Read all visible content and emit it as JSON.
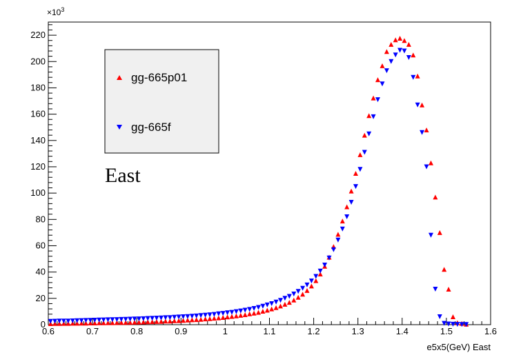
{
  "chart_data": {
    "type": "scatter",
    "xlabel": "e5x5(GeV) East",
    "ylabel": "",
    "y_multiplier_base": "×10",
    "y_multiplier_exp": "3",
    "xlim": [
      0.6,
      1.6
    ],
    "ylim": [
      0,
      230
    ],
    "x_ticks": [
      0.6,
      0.7,
      0.8,
      0.9,
      1.0,
      1.1,
      1.2,
      1.3,
      1.4,
      1.5,
      1.6
    ],
    "x_tick_labels": [
      "0.6",
      "0.7",
      "0.8",
      "0.9",
      "1",
      "1.1",
      "1.2",
      "1.3",
      "1.4",
      "1.5",
      "1.6"
    ],
    "y_ticks": [
      0,
      20,
      40,
      60,
      80,
      100,
      120,
      140,
      160,
      180,
      200,
      220
    ],
    "y_tick_labels": [
      "0",
      "20",
      "40",
      "60",
      "80",
      "100",
      "120",
      "140",
      "160",
      "180",
      "200",
      "220"
    ],
    "grid": false,
    "legend_position": "top-left",
    "annotation": "East",
    "series": [
      {
        "name": "gg-665p01",
        "color": "#ff0000",
        "marker": "triangle-up",
        "x": [
          0.605,
          0.615,
          0.625,
          0.635,
          0.645,
          0.655,
          0.665,
          0.675,
          0.685,
          0.695,
          0.705,
          0.715,
          0.725,
          0.735,
          0.745,
          0.755,
          0.765,
          0.775,
          0.785,
          0.795,
          0.805,
          0.815,
          0.825,
          0.835,
          0.845,
          0.855,
          0.865,
          0.875,
          0.885,
          0.895,
          0.905,
          0.915,
          0.925,
          0.935,
          0.945,
          0.955,
          0.965,
          0.975,
          0.985,
          0.995,
          1.005,
          1.015,
          1.025,
          1.035,
          1.045,
          1.055,
          1.065,
          1.075,
          1.085,
          1.095,
          1.105,
          1.115,
          1.125,
          1.135,
          1.145,
          1.155,
          1.165,
          1.175,
          1.185,
          1.195,
          1.205,
          1.215,
          1.225,
          1.235,
          1.245,
          1.255,
          1.265,
          1.275,
          1.285,
          1.295,
          1.305,
          1.315,
          1.325,
          1.335,
          1.345,
          1.355,
          1.365,
          1.375,
          1.385,
          1.395,
          1.405,
          1.415,
          1.425,
          1.435,
          1.445,
          1.455,
          1.465,
          1.475,
          1.485,
          1.495,
          1.505,
          1.515,
          1.525,
          1.535,
          1.545
        ],
        "values": [
          0.8,
          0.9,
          0.9,
          1.0,
          1.0,
          1.1,
          1.1,
          1.2,
          1.2,
          1.3,
          1.3,
          1.4,
          1.4,
          1.5,
          1.5,
          1.6,
          1.7,
          1.7,
          1.8,
          1.9,
          2.0,
          2.1,
          2.2,
          2.3,
          2.4,
          2.5,
          2.7,
          2.8,
          3.0,
          3.1,
          3.3,
          3.5,
          3.7,
          3.9,
          4.1,
          4.4,
          4.6,
          4.9,
          5.2,
          5.5,
          5.9,
          6.3,
          6.7,
          7.1,
          7.6,
          8.2,
          8.8,
          9.4,
          10.2,
          11.0,
          12.0,
          13.0,
          14.2,
          15.5,
          17.0,
          18.7,
          20.8,
          23.2,
          26.0,
          29.4,
          33.5,
          38.5,
          44.4,
          51.3,
          59.4,
          68.7,
          78.8,
          89.6,
          101.6,
          115.0,
          129.2,
          144.0,
          158.9,
          172.3,
          186.2,
          196.8,
          207.6,
          213.0,
          216.5,
          217.7,
          216.0,
          213.0,
          205.0,
          189.0,
          167.0,
          148.0,
          123.0,
          97.0,
          70.0,
          42.0,
          27.0,
          6.0,
          1.5,
          1.0,
          0.4
        ]
      },
      {
        "name": "gg-665f",
        "color": "#0000ff",
        "marker": "triangle-down",
        "x": [
          0.605,
          0.615,
          0.625,
          0.635,
          0.645,
          0.655,
          0.665,
          0.675,
          0.685,
          0.695,
          0.705,
          0.715,
          0.725,
          0.735,
          0.745,
          0.755,
          0.765,
          0.775,
          0.785,
          0.795,
          0.805,
          0.815,
          0.825,
          0.835,
          0.845,
          0.855,
          0.865,
          0.875,
          0.885,
          0.895,
          0.905,
          0.915,
          0.925,
          0.935,
          0.945,
          0.955,
          0.965,
          0.975,
          0.985,
          0.995,
          1.005,
          1.015,
          1.025,
          1.035,
          1.045,
          1.055,
          1.065,
          1.075,
          1.085,
          1.095,
          1.105,
          1.115,
          1.125,
          1.135,
          1.145,
          1.155,
          1.165,
          1.175,
          1.185,
          1.195,
          1.205,
          1.215,
          1.225,
          1.235,
          1.245,
          1.255,
          1.265,
          1.275,
          1.285,
          1.295,
          1.305,
          1.315,
          1.325,
          1.335,
          1.345,
          1.355,
          1.365,
          1.375,
          1.385,
          1.395,
          1.405,
          1.415,
          1.425,
          1.435,
          1.445,
          1.455,
          1.465,
          1.475,
          1.485,
          1.495,
          1.505,
          1.515,
          1.525,
          1.535,
          1.545
        ],
        "values": [
          2.5,
          2.6,
          2.7,
          2.7,
          2.8,
          2.9,
          3.0,
          3.1,
          3.2,
          3.3,
          3.4,
          3.5,
          3.6,
          3.7,
          3.8,
          3.9,
          4.0,
          4.1,
          4.2,
          4.3,
          4.4,
          4.5,
          4.7,
          4.8,
          5.0,
          5.1,
          5.3,
          5.4,
          5.6,
          5.8,
          6.0,
          6.2,
          6.4,
          6.6,
          6.9,
          7.2,
          7.5,
          7.8,
          8.2,
          8.6,
          9.0,
          9.4,
          9.9,
          10.4,
          11.0,
          11.6,
          12.3,
          13.1,
          14.0,
          15.0,
          16.0,
          17.2,
          18.5,
          20.0,
          21.5,
          23.3,
          25.3,
          27.6,
          30.2,
          33.2,
          36.7,
          40.7,
          45.3,
          50.7,
          57.0,
          64.3,
          72.7,
          82.0,
          93.0,
          105.0,
          118.0,
          131.0,
          145.0,
          158.0,
          171.0,
          183.0,
          193.0,
          200.0,
          205.0,
          208.5,
          208.0,
          203.0,
          188.0,
          167.0,
          146.0,
          120.0,
          68.0,
          27.0,
          6.0,
          1.0,
          0.5,
          0.3,
          0.2,
          0.1,
          0.1
        ]
      }
    ]
  }
}
